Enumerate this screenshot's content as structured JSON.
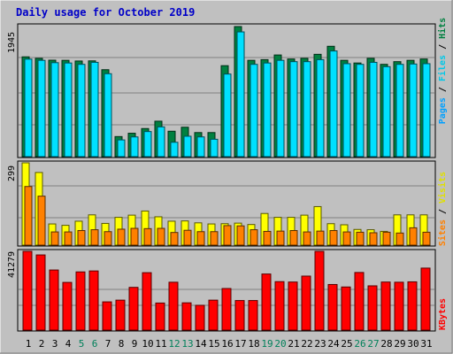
{
  "chart_data": {
    "type": "bar",
    "title": "Daily usage for October 2019",
    "categories": [
      "1",
      "2",
      "3",
      "4",
      "5",
      "6",
      "7",
      "8",
      "9",
      "10",
      "11",
      "12",
      "13",
      "14",
      "15",
      "16",
      "17",
      "18",
      "19",
      "20",
      "21",
      "22",
      "23",
      "24",
      "25",
      "26",
      "27",
      "28",
      "29",
      "30",
      "31"
    ],
    "weekend_days": [
      "5",
      "6",
      "12",
      "13",
      "19",
      "20",
      "26",
      "27"
    ],
    "panels": [
      {
        "name": "hits_files_pages",
        "max_label": "1945",
        "ymax": 1945,
        "legend": [
          "Pages",
          "Files",
          "Hits"
        ],
        "series": [
          {
            "name": "Hits",
            "color": "#008040",
            "values": [
              1492,
              1470,
              1442,
              1440,
              1430,
              1432,
              1300,
              300,
              350,
              420,
              530,
              380,
              440,
              360,
              360,
              1360,
              1945,
              1440,
              1450,
              1520,
              1460,
              1470,
              1530,
              1650,
              1440,
              1400,
              1470,
              1380,
              1420,
              1440,
              1460
            ]
          },
          {
            "name": "Files",
            "color": "#00e0ff",
            "values": [
              1458,
              1440,
              1405,
              1400,
              1380,
              1410,
              1240,
              250,
              295,
              375,
              445,
              215,
              305,
              295,
              260,
              1235,
              1865,
              1380,
              1400,
              1440,
              1420,
              1420,
              1450,
              1580,
              1390,
              1380,
              1410,
              1345,
              1380,
              1385,
              1390
            ]
          },
          {
            "name": "Pages",
            "color": "#00a0ff",
            "values": []
          }
        ]
      },
      {
        "name": "visits_sites",
        "max_label": "299",
        "ymax": 299,
        "legend": [
          "Sites",
          "Visits"
        ],
        "series": [
          {
            "name": "Visits",
            "color": "#ffff00",
            "values": [
              299,
              264,
              77,
              72,
              87,
              110,
              79,
              101,
              109,
              124,
              103,
              87,
              88,
              81,
              77,
              78,
              80,
              75,
              115,
              101,
              101,
              109,
              140,
              78,
              74,
              57,
              56,
              50,
              110,
              110,
              110
            ]
          },
          {
            "name": "Sites",
            "color": "#ff8000",
            "values": [
              213,
              178,
              48,
              48,
              53,
              56,
              49,
              58,
              61,
              60,
              61,
              46,
              54,
              49,
              49,
              71,
              70,
              56,
              50,
              51,
              53,
              48,
              51,
              53,
              48,
              47,
              45,
              47,
              44,
              63,
              47
            ]
          }
        ]
      },
      {
        "name": "kbytes",
        "max_label": "41279",
        "ymax": 41279,
        "legend": [
          "KBytes"
        ],
        "series": [
          {
            "name": "KBytes",
            "color": "#ff0000",
            "values": [
              41279,
              39400,
              31500,
              25000,
              30500,
              31000,
              14800,
              15700,
              22400,
              30100,
              14200,
              25100,
              14300,
              13000,
              15700,
              21800,
              15500,
              15500,
              29400,
              25400,
              25200,
              28300,
              41279,
              23900,
              22600,
              30200,
              23200,
              25200,
              25100,
              25300,
              32500
            ]
          }
        ]
      }
    ]
  }
}
